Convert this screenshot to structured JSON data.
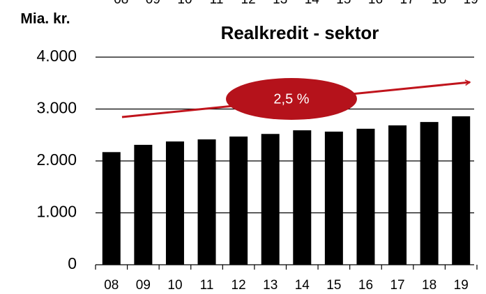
{
  "chart_data": {
    "type": "bar",
    "title": "Realkredit - sektor",
    "y_label": "Mia. kr.",
    "annotation": "2,5 %",
    "categories": [
      "08",
      "09",
      "10",
      "11",
      "12",
      "13",
      "14",
      "15",
      "16",
      "17",
      "18",
      "19"
    ],
    "values": [
      2170,
      2310,
      2375,
      2415,
      2470,
      2520,
      2590,
      2565,
      2620,
      2685,
      2750,
      2860
    ],
    "color": "#000000",
    "ylim": [
      0,
      4000
    ],
    "yticks": [
      {
        "value": 0,
        "label": "0"
      },
      {
        "value": 1000,
        "label": "1.000"
      },
      {
        "value": 2000,
        "label": "2.000"
      },
      {
        "value": 3000,
        "label": "3.000"
      },
      {
        "value": 4000,
        "label": "4.000"
      }
    ],
    "grid": true
  }
}
